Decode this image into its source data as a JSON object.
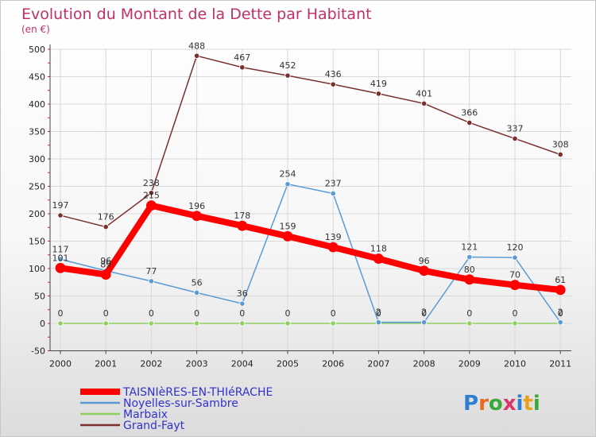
{
  "chart_data": {
    "type": "line",
    "title": "Evolution du Montant de la Dette par Habitant",
    "subtitle": "(en €)",
    "xlabel": "",
    "ylabel": "",
    "categories": [
      "2000",
      "2001",
      "2002",
      "2003",
      "2004",
      "2005",
      "2006",
      "2007",
      "2008",
      "2009",
      "2010",
      "2011"
    ],
    "ylim": [
      -50,
      500
    ],
    "yticks": [
      -50,
      0,
      50,
      100,
      150,
      200,
      250,
      300,
      350,
      400,
      450,
      500
    ],
    "grid": true,
    "legend_position": "bottom-left",
    "series": [
      {
        "name": "TAISNIèRES-EN-THIéRACHE",
        "color": "#ff0000",
        "width": 8,
        "values": [
          101,
          89,
          215,
          196,
          178,
          159,
          139,
          118,
          96,
          80,
          70,
          61
        ]
      },
      {
        "name": "Noyelles-sur-Sambre",
        "color": "#5b9bd5",
        "width": 1.5,
        "values": [
          117,
          96,
          77,
          56,
          36,
          254,
          237,
          2,
          2,
          121,
          120,
          2
        ]
      },
      {
        "name": "Marbaix",
        "color": "#90d060",
        "width": 1.5,
        "values": [
          0,
          0,
          0,
          0,
          0,
          0,
          0,
          0,
          0,
          0,
          0,
          0
        ]
      },
      {
        "name": "Grand-Fayt",
        "color": "#7a2f2f",
        "width": 1.5,
        "values": [
          197,
          176,
          238,
          488,
          467,
          452,
          436,
          419,
          401,
          366,
          337,
          308
        ]
      }
    ]
  },
  "colors": {
    "title": "#c0306a",
    "legend_text": "#3333cc",
    "grid": "#d8d8d8",
    "axis": "#444444"
  },
  "logo": "Proxiti"
}
